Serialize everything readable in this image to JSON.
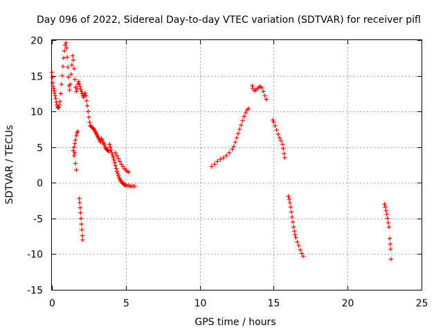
{
  "chart_data": {
    "type": "scatter",
    "title": "Day 096 of 2022, Sidereal Day-to-day VTEC variation (SDTVAR) for receiver pifl",
    "xlabel": "GPS time / hours",
    "ylabel": "SDTVAR / TECUs",
    "xlim": [
      0,
      25
    ],
    "ylim": [
      -15,
      20
    ],
    "x_ticks": [
      0,
      5,
      10,
      15,
      20,
      25
    ],
    "y_ticks": [
      -15,
      -10,
      -5,
      0,
      5,
      10,
      15,
      20
    ],
    "grid": true,
    "marker": "+",
    "color": "#ff0000",
    "series": [
      {
        "name": "SDTVAR",
        "points": [
          [
            0.0,
            15.5
          ],
          [
            0.03,
            14.8
          ],
          [
            0.06,
            14.0
          ],
          [
            0.09,
            13.5
          ],
          [
            0.12,
            13.2
          ],
          [
            0.15,
            12.9
          ],
          [
            0.18,
            12.6
          ],
          [
            0.22,
            12.2
          ],
          [
            0.26,
            11.8
          ],
          [
            0.3,
            11.3
          ],
          [
            0.34,
            10.9
          ],
          [
            0.38,
            10.6
          ],
          [
            0.42,
            10.5
          ],
          [
            0.46,
            10.6
          ],
          [
            0.5,
            10.9
          ],
          [
            0.55,
            11.4
          ],
          [
            0.6,
            12.5
          ],
          [
            0.65,
            13.8
          ],
          [
            0.7,
            15.0
          ],
          [
            0.75,
            16.3
          ],
          [
            0.8,
            17.5
          ],
          [
            0.85,
            18.5
          ],
          [
            0.9,
            19.3
          ],
          [
            0.95,
            19.6
          ],
          [
            1.0,
            18.9
          ],
          [
            1.04,
            17.6
          ],
          [
            1.08,
            16.2
          ],
          [
            1.12,
            14.8
          ],
          [
            1.16,
            13.6
          ],
          [
            1.2,
            13.0
          ],
          [
            1.25,
            13.8
          ],
          [
            1.3,
            15.2
          ],
          [
            1.35,
            16.5
          ],
          [
            1.4,
            17.8
          ],
          [
            1.45,
            17.2
          ],
          [
            1.5,
            16.0
          ],
          [
            1.55,
            14.5
          ],
          [
            1.6,
            13.4
          ],
          [
            1.65,
            12.8
          ],
          [
            1.7,
            13.2
          ],
          [
            1.75,
            13.8
          ],
          [
            1.8,
            14.2
          ],
          [
            1.85,
            13.9
          ],
          [
            1.9,
            13.5
          ],
          [
            1.95,
            13.1
          ],
          [
            2.0,
            12.8
          ],
          [
            2.05,
            12.5
          ],
          [
            2.1,
            12.2
          ],
          [
            2.15,
            12.0
          ],
          [
            2.2,
            12.3
          ],
          [
            2.25,
            12.6
          ],
          [
            2.3,
            12.2
          ],
          [
            2.35,
            11.5
          ],
          [
            2.4,
            10.8
          ],
          [
            2.45,
            10.0
          ],
          [
            2.5,
            9.2
          ],
          [
            2.55,
            8.5
          ],
          [
            2.6,
            8.0
          ],
          [
            2.65,
            7.9
          ],
          [
            2.7,
            7.8
          ],
          [
            2.75,
            7.7
          ],
          [
            2.8,
            7.6
          ],
          [
            2.85,
            7.5
          ],
          [
            2.9,
            7.3
          ],
          [
            2.95,
            7.1
          ],
          [
            3.0,
            6.9
          ],
          [
            3.05,
            6.7
          ],
          [
            3.1,
            6.5
          ],
          [
            3.15,
            6.3
          ],
          [
            3.2,
            6.1
          ],
          [
            3.25,
            5.9
          ],
          [
            3.3,
            5.7
          ],
          [
            3.35,
            6.2
          ],
          [
            3.4,
            6.0
          ],
          [
            3.45,
            5.7
          ],
          [
            3.5,
            5.5
          ],
          [
            3.55,
            5.3
          ],
          [
            3.6,
            5.0
          ],
          [
            3.65,
            4.8
          ],
          [
            3.7,
            4.7
          ],
          [
            3.75,
            4.6
          ],
          [
            3.8,
            4.5
          ],
          [
            3.85,
            4.4
          ],
          [
            3.9,
            5.4
          ],
          [
            3.95,
            5.0
          ],
          [
            4.0,
            4.6
          ],
          [
            4.05,
            4.2
          ],
          [
            4.1,
            3.9
          ],
          [
            4.15,
            3.6
          ],
          [
            4.2,
            3.2
          ],
          [
            4.25,
            2.8
          ],
          [
            4.3,
            2.4
          ],
          [
            4.35,
            2.0
          ],
          [
            4.4,
            1.6
          ],
          [
            4.45,
            1.3
          ],
          [
            4.5,
            1.0
          ],
          [
            4.55,
            0.7
          ],
          [
            4.6,
            0.5
          ],
          [
            4.65,
            0.3
          ],
          [
            4.7,
            0.2
          ],
          [
            4.75,
            0.0
          ],
          [
            4.8,
            -0.1
          ],
          [
            4.85,
            -0.2
          ],
          [
            4.9,
            -0.25
          ],
          [
            4.95,
            -0.3
          ],
          [
            5.0,
            -0.35
          ],
          [
            5.1,
            -0.4
          ],
          [
            5.2,
            -0.4
          ],
          [
            5.3,
            -0.45
          ],
          [
            5.4,
            -0.5
          ],
          [
            5.5,
            -0.5
          ],
          [
            5.6,
            -0.5
          ],
          [
            4.3,
            4.2
          ],
          [
            4.4,
            3.8
          ],
          [
            4.5,
            3.4
          ],
          [
            4.6,
            3.0
          ],
          [
            4.7,
            2.6
          ],
          [
            4.8,
            2.3
          ],
          [
            4.9,
            2.0
          ],
          [
            5.0,
            1.8
          ],
          [
            5.1,
            1.6
          ],
          [
            5.2,
            1.5
          ],
          [
            1.45,
            4.5
          ],
          [
            1.5,
            5.0
          ],
          [
            1.55,
            5.5
          ],
          [
            1.6,
            6.0
          ],
          [
            1.65,
            6.6
          ],
          [
            1.7,
            7.0
          ],
          [
            1.75,
            7.2
          ],
          [
            1.5,
            3.8
          ],
          [
            1.55,
            4.2
          ],
          [
            1.6,
            2.7
          ],
          [
            1.65,
            1.8
          ],
          [
            1.85,
            -2.2
          ],
          [
            1.88,
            -2.8
          ],
          [
            1.91,
            -3.5
          ],
          [
            1.94,
            -4.2
          ],
          [
            1.97,
            -5.0
          ],
          [
            2.0,
            -5.8
          ],
          [
            2.03,
            -6.6
          ],
          [
            2.06,
            -7.4
          ],
          [
            2.08,
            -8.0
          ],
          [
            10.8,
            2.3
          ],
          [
            11.0,
            2.6
          ],
          [
            11.2,
            3.0
          ],
          [
            11.4,
            3.3
          ],
          [
            11.6,
            3.5
          ],
          [
            11.8,
            3.8
          ],
          [
            12.0,
            4.2
          ],
          [
            12.2,
            4.7
          ],
          [
            12.3,
            5.1
          ],
          [
            12.4,
            5.7
          ],
          [
            12.5,
            6.3
          ],
          [
            12.6,
            6.9
          ],
          [
            12.7,
            7.5
          ],
          [
            12.8,
            8.1
          ],
          [
            12.9,
            8.7
          ],
          [
            13.0,
            9.3
          ],
          [
            13.1,
            9.8
          ],
          [
            13.2,
            10.2
          ],
          [
            13.3,
            10.4
          ],
          [
            13.55,
            13.6
          ],
          [
            13.6,
            13.2
          ],
          [
            13.7,
            12.9
          ],
          [
            13.8,
            13.0
          ],
          [
            13.9,
            13.2
          ],
          [
            14.0,
            13.4
          ],
          [
            14.1,
            13.5
          ],
          [
            14.2,
            13.3
          ],
          [
            14.3,
            12.8
          ],
          [
            14.4,
            12.2
          ],
          [
            14.5,
            11.7
          ],
          [
            14.95,
            8.8
          ],
          [
            15.0,
            8.5
          ],
          [
            15.1,
            8.0
          ],
          [
            15.2,
            7.4
          ],
          [
            15.3,
            6.8
          ],
          [
            15.4,
            6.3
          ],
          [
            15.5,
            5.9
          ],
          [
            15.6,
            5.4
          ],
          [
            15.65,
            4.8
          ],
          [
            15.7,
            4.1
          ],
          [
            15.75,
            3.5
          ],
          [
            16.0,
            -1.9
          ],
          [
            16.05,
            -2.3
          ],
          [
            16.1,
            -2.8
          ],
          [
            16.15,
            -3.4
          ],
          [
            16.2,
            -4.1
          ],
          [
            16.25,
            -4.8
          ],
          [
            16.3,
            -5.5
          ],
          [
            16.35,
            -6.2
          ],
          [
            16.4,
            -6.8
          ],
          [
            16.45,
            -7.3
          ],
          [
            16.5,
            -7.7
          ],
          [
            16.6,
            -8.3
          ],
          [
            16.7,
            -8.8
          ],
          [
            16.8,
            -9.4
          ],
          [
            16.9,
            -9.9
          ],
          [
            17.0,
            -10.3
          ],
          [
            22.5,
            -3.0
          ],
          [
            22.55,
            -3.4
          ],
          [
            22.6,
            -3.9
          ],
          [
            22.65,
            -4.4
          ],
          [
            22.7,
            -5.0
          ],
          [
            22.75,
            -5.6
          ],
          [
            22.8,
            -6.2
          ],
          [
            22.85,
            -7.8
          ],
          [
            22.88,
            -8.6
          ],
          [
            22.91,
            -9.3
          ],
          [
            22.94,
            -10.7
          ]
        ]
      }
    ]
  }
}
